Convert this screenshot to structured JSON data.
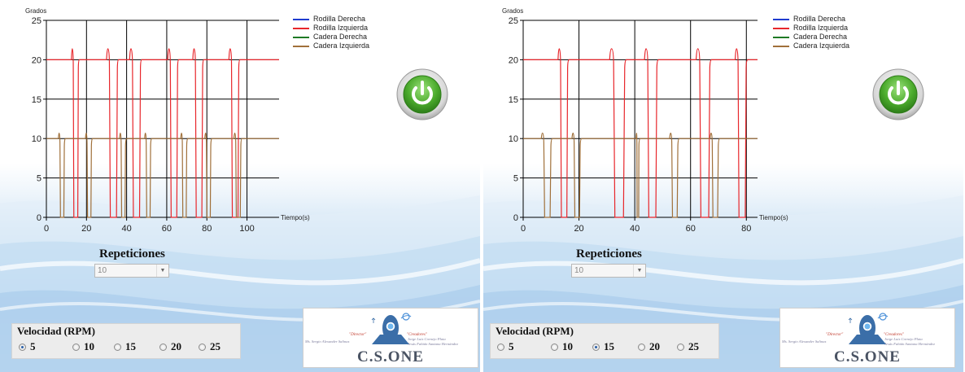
{
  "panels": [
    {
      "id": "left",
      "chart": {
        "ylabel": "Grados",
        "xlabel": "Tiempo(s)",
        "y_ticks": [
          "0",
          "5",
          "10",
          "15",
          "20",
          "25"
        ],
        "x_ticks": [
          "0",
          "20",
          "40",
          "60",
          "80",
          "100"
        ]
      },
      "legend": [
        "Rodilla Derecha",
        "Rodilla Izquierda",
        "Cadera Derecha",
        "Cadera Izquierda"
      ],
      "repeticiones": {
        "title": "Repeticiones",
        "value": "10"
      },
      "velocidad": {
        "title": "Velocidad (RPM)",
        "options": [
          "5",
          "10",
          "15",
          "20",
          "25"
        ],
        "selected": "5"
      },
      "logo": {
        "main": "C.S.ONE",
        "director_title": "\"Director\"",
        "director_name": "Ms. Sergio Alexander Salinas",
        "creators_title": "\"Creadores\"",
        "creator1": "Jorge Luis Cornejo Plata",
        "creator2": "Jesús Fabián Santana Hernández"
      }
    },
    {
      "id": "right",
      "chart": {
        "ylabel": "Grados",
        "xlabel": "Tiempo(s)",
        "y_ticks": [
          "0",
          "5",
          "10",
          "15",
          "20",
          "25"
        ],
        "x_ticks": [
          "0",
          "20",
          "40",
          "60",
          "80"
        ]
      },
      "legend": [
        "Rodilla Derecha",
        "Rodilla Izquierda",
        "Cadera Derecha",
        "Cadera Izquierda"
      ],
      "repeticiones": {
        "title": "Repeticiones",
        "value": "10"
      },
      "velocidad": {
        "title": "Velocidad (RPM)",
        "options": [
          "5",
          "10",
          "15",
          "20",
          "25"
        ],
        "selected": "15"
      },
      "logo": {
        "main": "C.S.ONE",
        "director_title": "\"Director\"",
        "director_name": "Ms. Sergio Alexander Salinas",
        "creators_title": "\"Creadores\"",
        "creator1": "Jorge Luis Cornejo Plata",
        "creator2": "Jesús Fabián Santana Hernández"
      }
    }
  ],
  "colors": {
    "rodilla_derecha": "#1f3ccf",
    "rodilla_izquierda": "#e8262b",
    "cadera_derecha": "#1f7a25",
    "cadera_izquierda": "#a0703a"
  },
  "chart_data": [
    {
      "type": "line",
      "ylabel": "Grados",
      "xlabel": "Tiempo(s)",
      "xlim": [
        0,
        116
      ],
      "ylim": [
        0,
        25
      ],
      "grid": true,
      "legend_position": "top-right",
      "series": [
        {
          "name": "Rodilla Izquierda",
          "baseline": 20,
          "peak": 21.4,
          "pulses": [
            [
              12.5,
              16
            ],
            [
              30,
              35.5
            ],
            [
              41.5,
              47
            ],
            [
              60.5,
              65.5
            ],
            [
              73,
              78
            ],
            [
              91,
              96
            ]
          ]
        },
        {
          "name": "Cadera Izquierda",
          "baseline": 10,
          "peak": 10.7,
          "pulses": [
            [
              6,
              9
            ],
            [
              19.5,
              22.5
            ],
            [
              36.5,
              39.5
            ],
            [
              49,
              52
            ],
            [
              67,
              70
            ],
            [
              79,
              82
            ],
            [
              93.5,
              97
            ]
          ]
        }
      ]
    },
    {
      "type": "line",
      "ylabel": "Grados",
      "xlabel": "Tiempo(s)",
      "xlim": [
        0,
        84
      ],
      "ylim": [
        0,
        25
      ],
      "grid": true,
      "legend_position": "top-right",
      "series": [
        {
          "name": "Rodilla Izquierda",
          "baseline": 20,
          "peak": 21.4,
          "pulses": [
            [
              12.5,
              16
            ],
            [
              31,
              36.5
            ],
            [
              43.5,
              48
            ],
            [
              62,
              67
            ],
            [
              76,
              80
            ]
          ]
        },
        {
          "name": "Cadera Izquierda",
          "baseline": 10,
          "peak": 10.7,
          "pulses": [
            [
              6.5,
              10
            ],
            [
              17.5,
              20.5
            ],
            [
              40.5,
              41.5
            ],
            [
              52.5,
              55.5
            ],
            [
              67,
              70
            ]
          ]
        }
      ]
    }
  ]
}
